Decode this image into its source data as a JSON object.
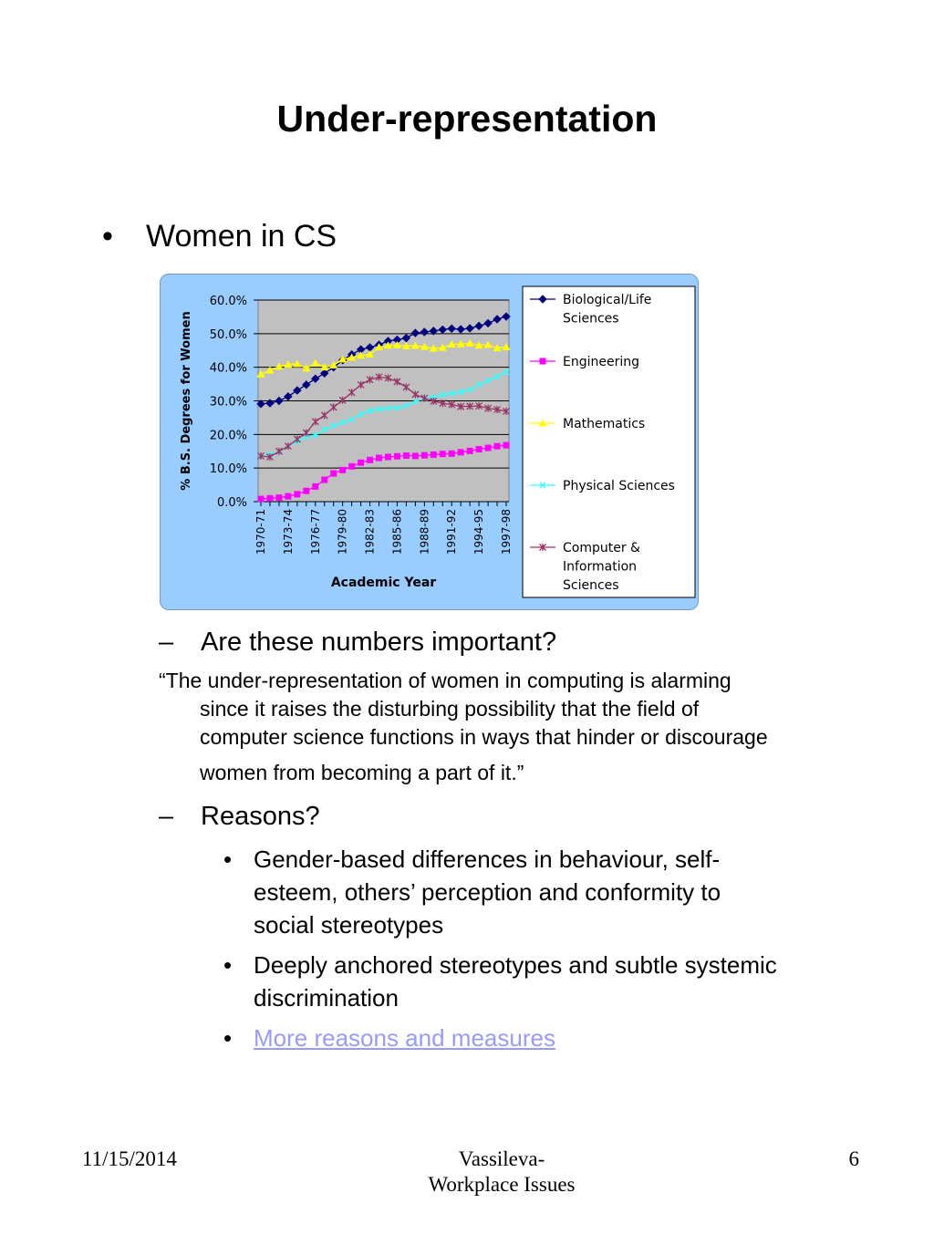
{
  "slide": {
    "title": "Under-representation",
    "bullet_main": {
      "mark": "•",
      "text": "Women in CS"
    },
    "dash1": {
      "mark": "–",
      "text": "Are these numbers important?"
    },
    "quote_lines": [
      "“The under-representation of women in computing is alarming",
      "since it raises the disturbing possibility that the field of",
      "computer science functions in ways that hinder or discourage",
      "women from becoming a part of it.”"
    ],
    "dash2": {
      "mark": "–",
      "text": "Reasons?"
    },
    "sub_bullets": [
      {
        "mark": "•",
        "lines": [
          "Gender-based differences in behaviour, self-",
          "esteem, others’ perception and conformity to",
          "social stereotypes"
        ]
      },
      {
        "mark": "•",
        "lines": [
          "Deeply anchored stereotypes and subtle systemic",
          "discrimination"
        ]
      },
      {
        "mark": "•",
        "lines": [
          "More reasons and measures"
        ],
        "link": true
      }
    ],
    "link_color": "#9999ff",
    "footer": {
      "date": "11/15/2014",
      "center_lines": [
        "Vassileva-",
        "Workplace Issues"
      ],
      "page": "6"
    }
  },
  "chart_data": {
    "type": "line",
    "title": "",
    "xlabel": "Academic Year",
    "ylabel": "% B.S. Degrees for Women",
    "ylim": [
      0,
      60
    ],
    "yticks": [
      "0.0%",
      "10.0%",
      "20.0%",
      "30.0%",
      "40.0%",
      "50.0%",
      "60.0%"
    ],
    "x": [
      "1970-71",
      "1971-72",
      "1972-73",
      "1973-74",
      "1974-75",
      "1975-76",
      "1976-77",
      "1977-78",
      "1978-79",
      "1979-80",
      "1980-81",
      "1981-82",
      "1982-83",
      "1983-84",
      "1984-85",
      "1985-86",
      "1986-87",
      "1987-88",
      "1988-89",
      "1989-90",
      "1990-91",
      "1991-92",
      "1992-93",
      "1993-94",
      "1994-95",
      "1995-96",
      "1996-97",
      "1997-98"
    ],
    "xtick_labels": [
      "1970-71",
      "1973-74",
      "1976-77",
      "1979-80",
      "1982-83",
      "1985-86",
      "1988-89",
      "1991-92",
      "1994-95",
      "1997-98"
    ],
    "grid": true,
    "legend": "right",
    "plot_background": "#c0c0c0",
    "series": [
      {
        "name": "Biological/Life Sciences",
        "color": "#000080",
        "marker": "diamond",
        "values": [
          29.1,
          29.3,
          30.0,
          31.3,
          33.1,
          34.8,
          36.6,
          38.2,
          40.0,
          42.1,
          43.8,
          45.3,
          45.9,
          46.7,
          47.8,
          48.2,
          48.7,
          50.2,
          50.5,
          50.8,
          51.2,
          51.5,
          51.3,
          51.6,
          52.3,
          53.1,
          54.3,
          55.1
        ]
      },
      {
        "name": "Engineering",
        "color": "#ff00ff",
        "marker": "square",
        "values": [
          0.8,
          1.0,
          1.2,
          1.6,
          2.2,
          3.2,
          4.5,
          6.5,
          8.4,
          9.4,
          10.5,
          11.6,
          12.4,
          13.0,
          13.3,
          13.5,
          13.7,
          13.6,
          13.8,
          14.0,
          14.2,
          14.3,
          14.7,
          15.1,
          15.6,
          16.0,
          16.5,
          16.8
        ]
      },
      {
        "name": "Mathematics",
        "color": "#ffff00",
        "marker": "triangle",
        "values": [
          37.9,
          39.1,
          40.2,
          40.8,
          41.0,
          39.7,
          41.2,
          40.0,
          40.6,
          42.4,
          42.9,
          43.5,
          43.8,
          46.0,
          46.5,
          46.6,
          46.3,
          46.4,
          46.1,
          45.6,
          45.8,
          46.8,
          46.9,
          47.1,
          46.5,
          46.7,
          45.7,
          46.0
        ]
      },
      {
        "name": "Physical Sciences",
        "color": "#33ffff",
        "marker": "x",
        "values": [
          13.5,
          14.0,
          14.8,
          16.5,
          18.0,
          19.4,
          19.8,
          21.5,
          22.6,
          23.6,
          24.4,
          26.0,
          27.0,
          27.5,
          27.8,
          27.9,
          28.6,
          29.8,
          30.7,
          31.1,
          31.8,
          32.2,
          32.6,
          33.3,
          34.8,
          36.0,
          37.2,
          38.6
        ]
      },
      {
        "name": "Computer & Information Sciences",
        "color": "#993366",
        "marker": "star",
        "values": [
          13.6,
          13.3,
          15.0,
          16.5,
          18.6,
          20.5,
          23.8,
          25.7,
          28.1,
          30.2,
          32.5,
          34.8,
          36.3,
          37.1,
          36.8,
          35.7,
          34.1,
          31.9,
          30.8,
          29.9,
          29.3,
          28.9,
          28.3,
          28.4,
          28.5,
          27.8,
          27.4,
          26.9
        ]
      }
    ],
    "legend_lines": [
      [
        "Biological/Life",
        "Sciences"
      ],
      [
        "Engineering"
      ],
      [
        "Mathematics"
      ],
      [
        "Physical Sciences"
      ],
      [
        "Computer &",
        "Information",
        "Sciences"
      ]
    ]
  }
}
